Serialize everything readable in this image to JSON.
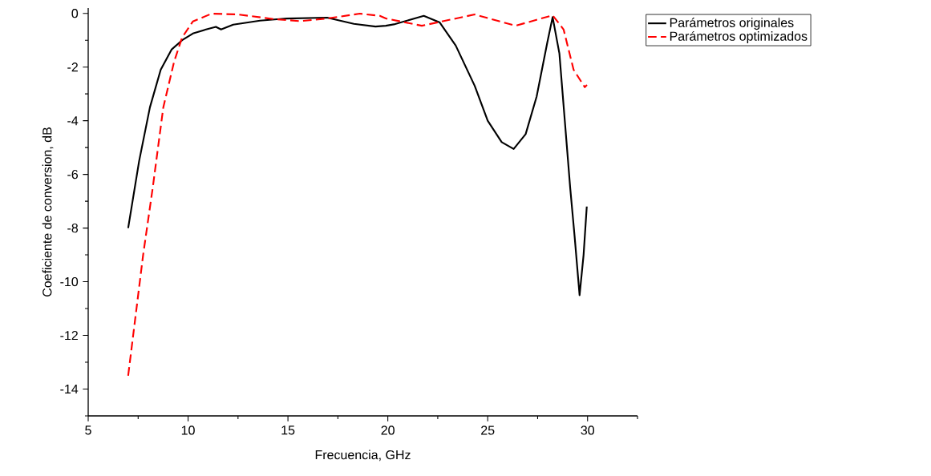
{
  "chart_data": {
    "type": "line",
    "xlabel": "Frecuencia, GHz",
    "ylabel": "Coeficiente de conversion, dB",
    "xlim": [
      5,
      32.5
    ],
    "ylim": [
      -15,
      0.2
    ],
    "xticks": [
      5,
      {
        "value": 7.5,
        "label": null
      },
      10,
      {
        "value": 12.5,
        "label": null
      },
      15,
      {
        "value": 17.5,
        "label": null
      },
      20,
      {
        "value": 22.5,
        "label": null
      },
      25,
      {
        "value": 27.5,
        "label": null
      },
      30,
      {
        "value": 32.5,
        "label": null
      }
    ],
    "yticks": [
      {
        "value": -15,
        "label": null
      },
      -14,
      {
        "value": -13,
        "label": null
      },
      -12,
      {
        "value": -11,
        "label": null
      },
      -10,
      {
        "value": -9,
        "label": null
      },
      -8,
      {
        "value": -7,
        "label": null
      },
      -6,
      {
        "value": -5,
        "label": null
      },
      -4,
      {
        "value": -3,
        "label": null
      },
      -2,
      {
        "value": -1,
        "label": null
      },
      0
    ],
    "grid": false,
    "legend": "top right",
    "marker": "none",
    "series": [
      {
        "name": "Parámetros originales",
        "color": "#000000",
        "line_style": "solid",
        "x": [
          7.0,
          7.55,
          8.09,
          8.63,
          9.17,
          9.7,
          10.24,
          10.9,
          11.39,
          11.65,
          12.26,
          13.6,
          14.95,
          16.96,
          18.3,
          19.38,
          19.9,
          20.3,
          21.8,
          22.6,
          23.4,
          24.35,
          25.0,
          25.7,
          26.3,
          26.9,
          27.45,
          27.98,
          28.25,
          28.59,
          28.86,
          29.13,
          29.35,
          29.6,
          29.8,
          29.96
        ],
        "values": [
          -8.0,
          -5.5,
          -3.5,
          -2.1,
          -1.35,
          -1.0,
          -0.75,
          -0.6,
          -0.5,
          -0.6,
          -0.42,
          -0.27,
          -0.19,
          -0.16,
          -0.39,
          -0.49,
          -0.46,
          -0.41,
          -0.09,
          -0.34,
          -1.2,
          -2.7,
          -4.0,
          -4.8,
          -5.05,
          -4.5,
          -3.1,
          -1.1,
          -0.14,
          -1.5,
          -4.0,
          -6.5,
          -8.3,
          -10.5,
          -9.0,
          -7.2
        ]
      },
      {
        "name": "Parámetros optimizados",
        "color": "#ff0000",
        "line_style": "dashed",
        "x": [
          7.0,
          7.75,
          8.23,
          8.76,
          9.3,
          9.7,
          10.24,
          11.18,
          12.5,
          14.27,
          15.6,
          16.96,
          18.6,
          19.6,
          19.9,
          21.7,
          24.35,
          26.4,
          28.25,
          28.8,
          29.3,
          29.86,
          29.97
        ],
        "values": [
          -13.5,
          -9.0,
          -6.5,
          -3.5,
          -1.8,
          -0.9,
          -0.3,
          -0.01,
          -0.04,
          -0.21,
          -0.29,
          -0.19,
          -0.01,
          -0.09,
          -0.19,
          -0.46,
          -0.04,
          -0.46,
          -0.07,
          -0.6,
          -2.1,
          -2.75,
          -2.67
        ]
      }
    ]
  }
}
